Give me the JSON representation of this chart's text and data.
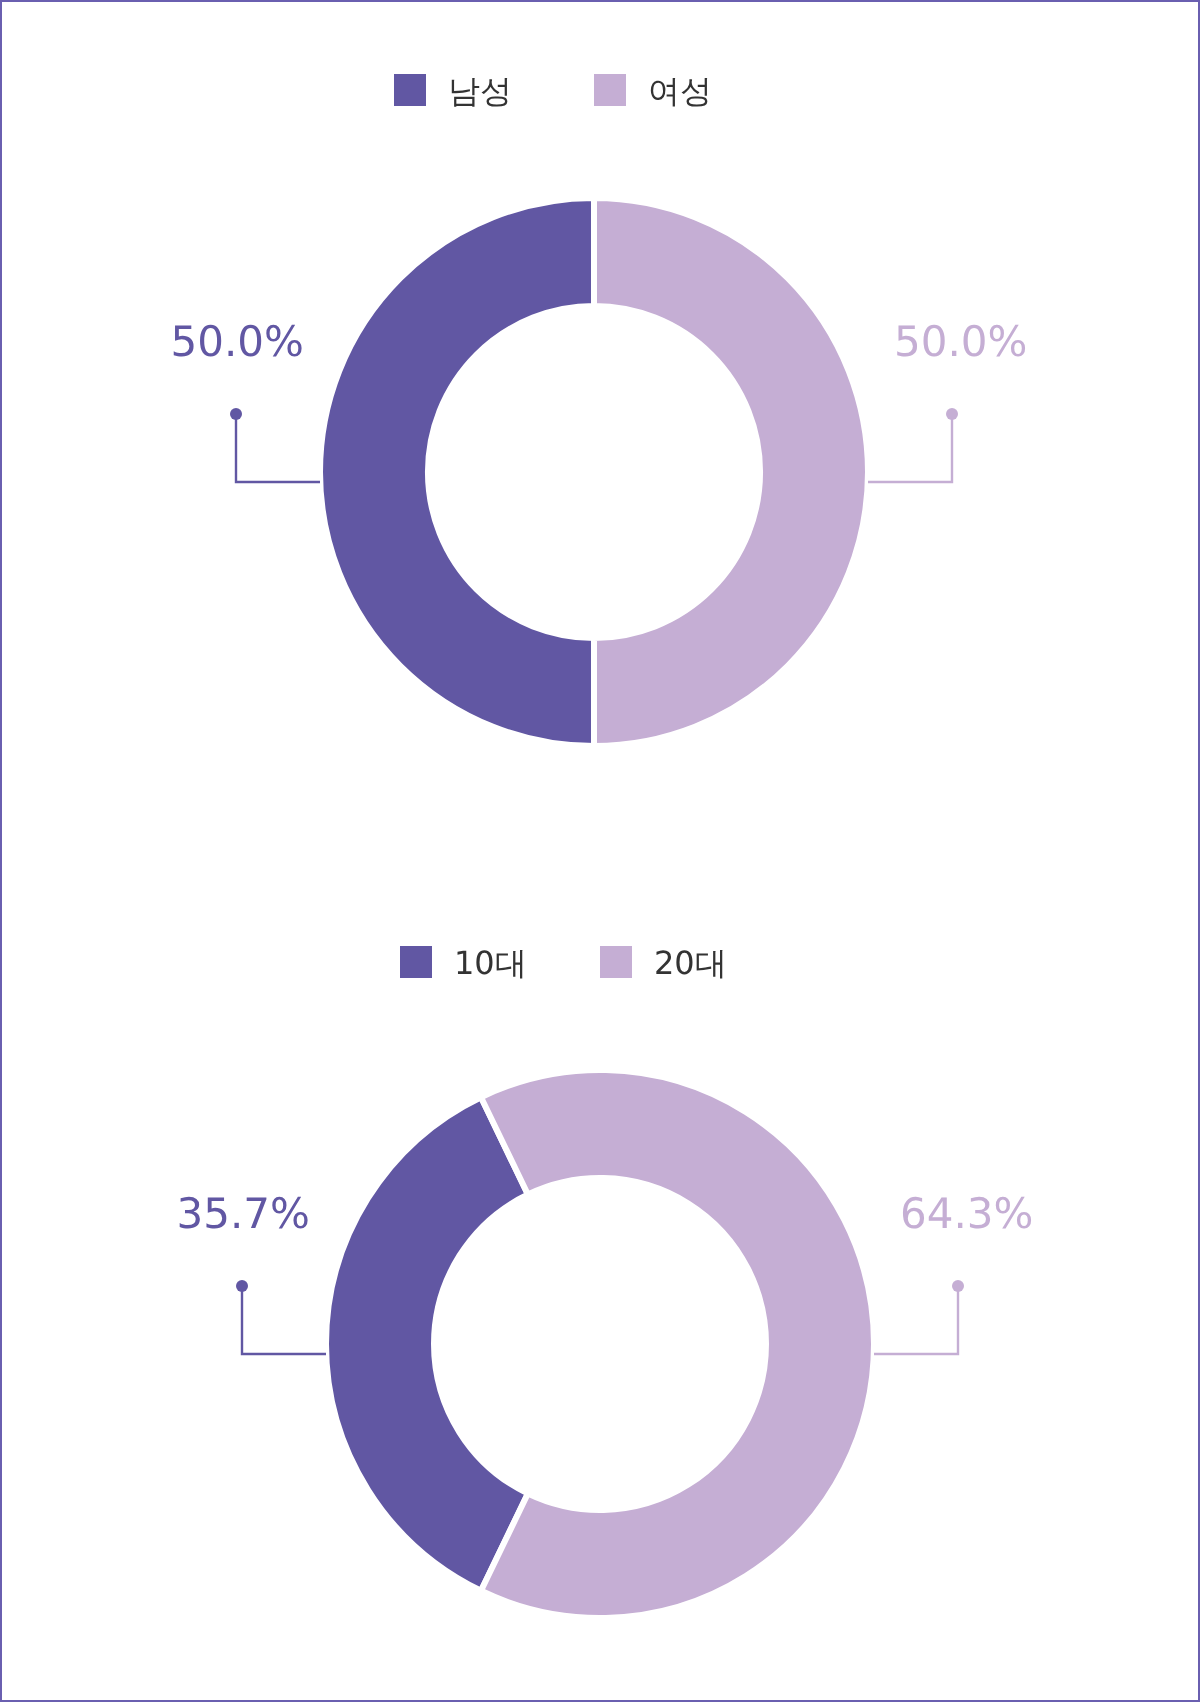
{
  "chart_data": [
    {
      "type": "donut",
      "categories": [
        "남성",
        "여성"
      ],
      "values": [
        50.0,
        50.0
      ],
      "colors": [
        "#6157a3",
        "#c5aed4"
      ],
      "value_labels": [
        "50.0%",
        "50.0%"
      ],
      "legend": "top"
    },
    {
      "type": "donut",
      "categories": [
        "10대",
        "20대"
      ],
      "values": [
        35.7,
        64.3
      ],
      "colors": [
        "#6157a3",
        "#c5aed4"
      ],
      "value_labels": [
        "35.7%",
        "64.3%"
      ],
      "legend": "top"
    }
  ]
}
